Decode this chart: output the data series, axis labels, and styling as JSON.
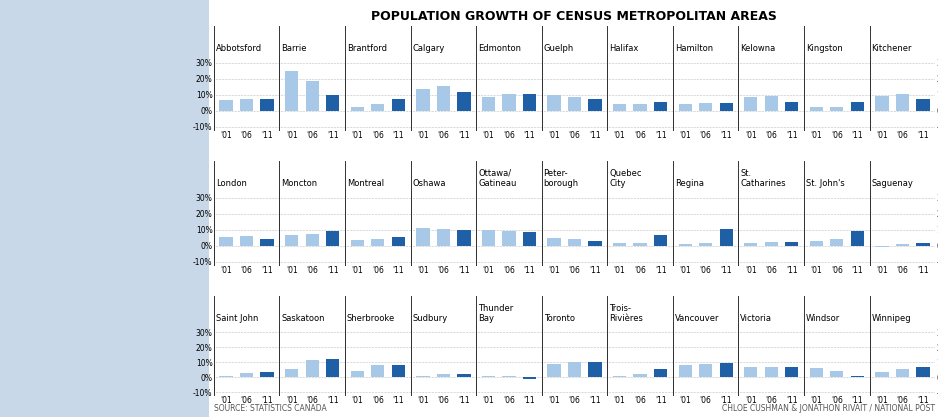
{
  "title": "POPULATION GROWTH OF CENSUS METROPOLITAN AREAS",
  "source_left": "SOURCE: STATISTICS CANADA",
  "source_right": "CHLOE CUSHMAN & JONATHON RIVAIT / NATIONAL POST",
  "years": [
    "'01",
    "'06",
    "'11"
  ],
  "color_dark": "#1f5fa6",
  "color_light": "#a8c8e8",
  "ylim": [
    -0.12,
    0.35
  ],
  "yticks": [
    -0.1,
    0.0,
    0.1,
    0.2,
    0.3
  ],
  "yticklabels": [
    "-10%",
    "0%",
    "10%",
    "20%",
    "30%"
  ],
  "rows": [
    {
      "cities": [
        {
          "name": "Abbotsford",
          "values": [
            0.065,
            0.075,
            0.075
          ]
        },
        {
          "name": "Barrie",
          "values": [
            0.25,
            0.185,
            0.1
          ]
        },
        {
          "name": "Brantford",
          "values": [
            0.025,
            0.04,
            0.075
          ]
        },
        {
          "name": "Calgary",
          "values": [
            0.14,
            0.155,
            0.115
          ]
        },
        {
          "name": "Edmonton",
          "values": [
            0.085,
            0.105,
            0.105
          ]
        },
        {
          "name": "Guelph",
          "values": [
            0.1,
            0.085,
            0.075
          ]
        },
        {
          "name": "Halifax",
          "values": [
            0.04,
            0.04,
            0.055
          ]
        },
        {
          "name": "Hamilton",
          "values": [
            0.045,
            0.05,
            0.05
          ]
        },
        {
          "name": "Kelowna",
          "values": [
            0.085,
            0.095,
            0.055
          ]
        },
        {
          "name": "Kingston",
          "values": [
            0.025,
            0.025,
            0.055
          ]
        },
        {
          "name": "Kitchener",
          "values": [
            0.095,
            0.105,
            0.075
          ]
        }
      ]
    },
    {
      "cities": [
        {
          "name": "London",
          "values": [
            0.055,
            0.06,
            0.045
          ]
        },
        {
          "name": "Moncton",
          "values": [
            0.065,
            0.075,
            0.09
          ]
        },
        {
          "name": "Montreal",
          "values": [
            0.035,
            0.045,
            0.055
          ]
        },
        {
          "name": "Oshawa",
          "values": [
            0.115,
            0.105,
            0.1
          ]
        },
        {
          "name": "Ottawa/\nGatineau",
          "values": [
            0.1,
            0.09,
            0.085
          ]
        },
        {
          "name": "Peter-\nborough",
          "values": [
            0.05,
            0.045,
            0.03
          ]
        },
        {
          "name": "Quebec\nCity",
          "values": [
            0.015,
            0.02,
            0.065
          ]
        },
        {
          "name": "Regina",
          "values": [
            0.01,
            0.02,
            0.105
          ]
        },
        {
          "name": "St.\nCatharines",
          "values": [
            0.02,
            0.025,
            0.025
          ]
        },
        {
          "name": "St. John's",
          "values": [
            0.03,
            0.04,
            0.09
          ]
        },
        {
          "name": "Saguenay",
          "values": [
            -0.005,
            0.01,
            0.02
          ]
        }
      ]
    },
    {
      "cities": [
        {
          "name": "Saint John",
          "values": [
            0.01,
            0.025,
            0.035
          ]
        },
        {
          "name": "Saskatoon",
          "values": [
            0.055,
            0.115,
            0.12
          ]
        },
        {
          "name": "Sherbrooke",
          "values": [
            0.04,
            0.08,
            0.08
          ]
        },
        {
          "name": "Sudbury",
          "values": [
            0.005,
            0.02,
            0.02
          ]
        },
        {
          "name": "Thunder\nBay",
          "values": [
            0.01,
            0.005,
            -0.01
          ]
        },
        {
          "name": "Toronto",
          "values": [
            0.09,
            0.1,
            0.1
          ]
        },
        {
          "name": "Trois-\nRivières",
          "values": [
            0.01,
            0.02,
            0.055
          ]
        },
        {
          "name": "Vancouver",
          "values": [
            0.08,
            0.09,
            0.095
          ]
        },
        {
          "name": "Victoria",
          "values": [
            0.065,
            0.065,
            0.065
          ]
        },
        {
          "name": "Windsor",
          "values": [
            0.06,
            0.04,
            0.01
          ]
        },
        {
          "name": "Winnipeg",
          "values": [
            0.035,
            0.055,
            0.065
          ]
        }
      ]
    }
  ]
}
